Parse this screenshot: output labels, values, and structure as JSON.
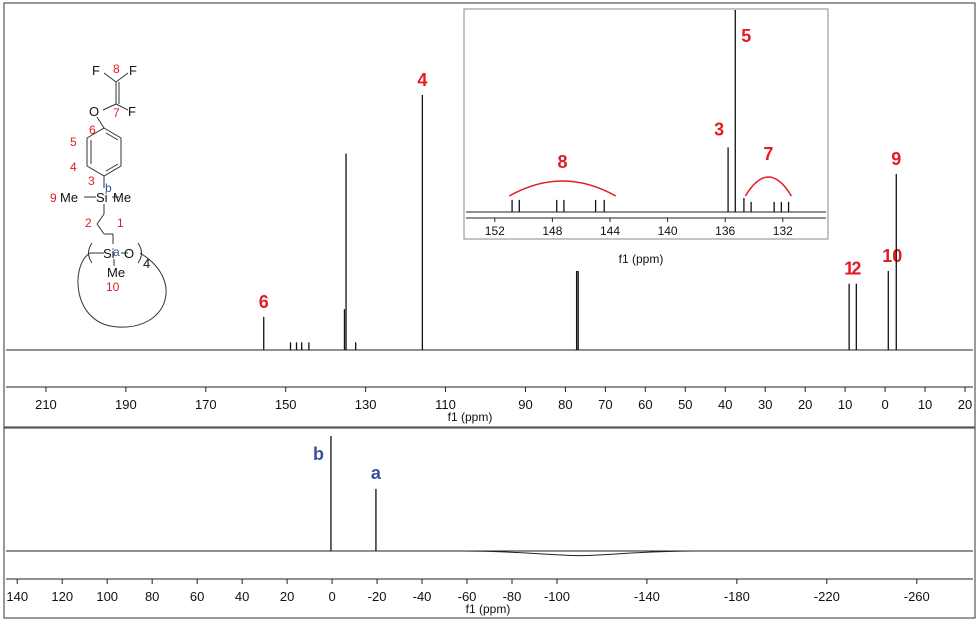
{
  "chart_data": [
    {
      "type": "line",
      "panel": "13C NMR spectrum",
      "xlabel": "f1 (ppm)",
      "xlim": [
        220,
        -22
      ],
      "ticks": [
        210,
        190,
        170,
        150,
        130,
        110,
        90,
        80,
        70,
        60,
        50,
        40,
        30,
        20,
        10,
        0,
        -10,
        -20
      ],
      "tick_labels": [
        "210",
        "190",
        "170",
        "150",
        "130",
        "110",
        "90",
        "80",
        "70",
        "60",
        "50",
        "40",
        "30",
        "20",
        "10",
        "0",
        "10",
        "20"
      ],
      "peaks": [
        {
          "x": 155.5,
          "height": 0.13,
          "label": "6"
        },
        {
          "x": 148.8,
          "height": 0.03,
          "label": ""
        },
        {
          "x": 147.3,
          "height": 0.03,
          "label": ""
        },
        {
          "x": 146.0,
          "height": 0.03,
          "label": ""
        },
        {
          "x": 144.2,
          "height": 0.03,
          "label": ""
        },
        {
          "x": 134.9,
          "height": 0.77,
          "label": ""
        },
        {
          "x": 135.3,
          "height": 0.16,
          "label": ""
        },
        {
          "x": 132.5,
          "height": 0.03,
          "label": ""
        },
        {
          "x": 115.8,
          "height": 1.0,
          "label": "4"
        },
        {
          "x": 77.2,
          "height": 0.31,
          "label": ""
        },
        {
          "x": 76.8,
          "height": 0.31,
          "label": ""
        },
        {
          "x": 9.0,
          "height": 0.26,
          "label": "1"
        },
        {
          "x": 7.2,
          "height": 0.26,
          "label": "2"
        },
        {
          "x": -0.8,
          "height": 0.31,
          "label": "10"
        },
        {
          "x": -2.8,
          "height": 0.69,
          "label": "9"
        }
      ],
      "inset": {
        "xlabel": "f1 (ppm)",
        "xlim": [
          154,
          129
        ],
        "ticks": [
          152,
          148,
          144,
          140,
          136,
          132
        ],
        "tick_labels": [
          "152",
          "148",
          "144",
          "140",
          "136",
          "132"
        ],
        "peaks": [
          {
            "x": 150.8,
            "height": 0.06
          },
          {
            "x": 150.3,
            "height": 0.06
          },
          {
            "x": 147.7,
            "height": 0.06
          },
          {
            "x": 147.2,
            "height": 0.06
          },
          {
            "x": 145.0,
            "height": 0.06
          },
          {
            "x": 144.4,
            "height": 0.06
          },
          {
            "x": 135.8,
            "height": 0.32,
            "label": "3"
          },
          {
            "x": 135.3,
            "height": 1.0,
            "label": "5"
          },
          {
            "x": 134.7,
            "height": 0.07
          },
          {
            "x": 134.2,
            "height": 0.05
          },
          {
            "x": 132.6,
            "height": 0.05
          },
          {
            "x": 132.1,
            "height": 0.05
          },
          {
            "x": 131.6,
            "height": 0.05
          }
        ],
        "groups": [
          {
            "label": "8",
            "from": 151.0,
            "to": 143.6
          },
          {
            "label": "7",
            "from": 134.6,
            "to": 131.4
          }
        ]
      }
    },
    {
      "type": "line",
      "panel": "29Si NMR spectrum",
      "xlabel": "f1 (ppm)",
      "xlim": [
        145,
        -285
      ],
      "ticks": [
        140,
        120,
        100,
        80,
        60,
        40,
        20,
        0,
        -20,
        -40,
        -60,
        -80,
        -100,
        -140,
        -180,
        -220,
        -260
      ],
      "tick_labels": [
        "140",
        "120",
        "100",
        "80",
        "60",
        "40",
        "20",
        "0",
        "-20",
        "-40",
        "-60",
        "-80",
        "-100",
        "-140",
        "-180",
        "-220",
        "-260"
      ],
      "peaks": [
        {
          "x": 0.5,
          "height": 1.0,
          "label": "b"
        },
        {
          "x": -19.5,
          "height": 0.54,
          "label": "a"
        }
      ],
      "broad_hump": {
        "x": -110,
        "depth": 0.04
      }
    }
  ],
  "structure": {
    "atoms": {
      "f_left": "F",
      "f_right": "F",
      "f_lower": "F",
      "oxygen": "O",
      "si_upper": "Si",
      "me_left": "Me",
      "me_right": "Me",
      "si_ring": "Si",
      "ring_o": "O",
      "me_ring": "Me",
      "ring_count": "4"
    },
    "numbers": [
      "8",
      "7",
      "6",
      "5",
      "4",
      "3",
      "9",
      "2",
      "1",
      "10"
    ],
    "si_labels": [
      "b",
      "a"
    ]
  },
  "colors": {
    "red": "#e31b23",
    "blue": "#3b4fa0"
  }
}
